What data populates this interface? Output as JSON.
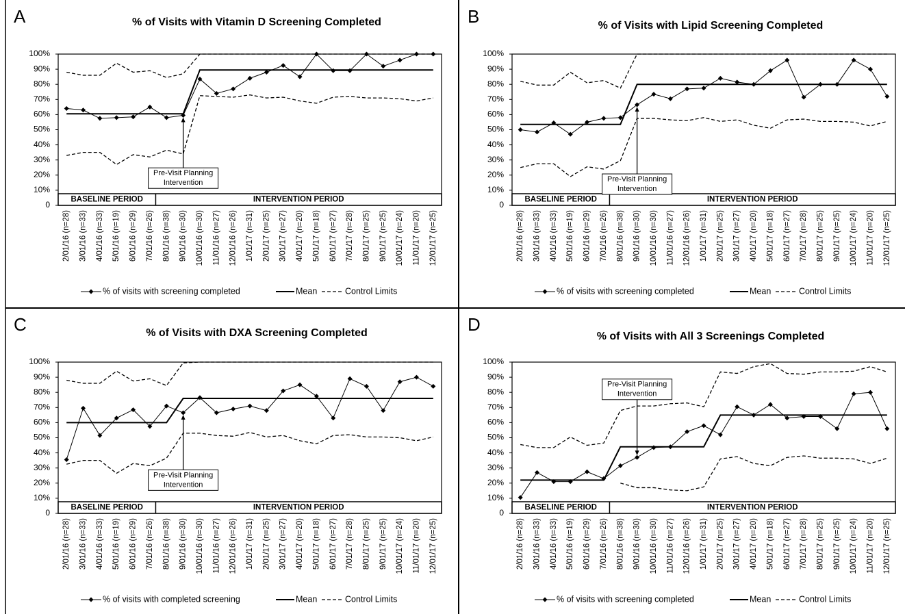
{
  "chart_data": [
    {
      "type": "line",
      "letter": "A",
      "title": "% of Visits with Vitamin D Screening Completed",
      "annotation": [
        "Pre-Visit Planning",
        "Intervention"
      ],
      "periods": [
        "BASELINE PERIOD",
        "INTERVENTION PERIOD"
      ],
      "categories": [
        "2/01/16 (n=28)",
        "3/01/16 (n=33)",
        "4/01/16 (n=33)",
        "5/01/16 (n=19)",
        "6/01/16 (n=29)",
        "7/01/16 (n=26)",
        "8/01/16 (n=38)",
        "9/01/16 (n=30)",
        "10/01/16 (n=30)",
        "11/01/16 (n=27)",
        "12/01/16 (n=26)",
        "1/01/17 (n=31)",
        "2/01/17 (n=25)",
        "3/01/17 (n=27)",
        "4/01/17 (n=20)",
        "5/01/17 (n=18)",
        "6/01/17 (n=27)",
        "7/01/17 (n=28)",
        "8/01/17 (n=25)",
        "9/01/17 (n=25)",
        "10/01/17 (n=24)",
        "11/01/17 (n=20)",
        "12/01/17 (n=25)"
      ],
      "ylim": [
        0,
        100
      ],
      "yticks": [
        0,
        {
          "value": 10,
          "label": "10%"
        },
        {
          "value": 20,
          "label": "20%"
        },
        {
          "value": 30,
          "label": "30%"
        },
        {
          "value": 40,
          "label": "40%"
        },
        {
          "value": 50,
          "label": "50%"
        },
        {
          "value": 60,
          "label": "60%"
        },
        {
          "value": 70,
          "label": "70%"
        },
        {
          "value": 80,
          "label": "80%"
        },
        {
          "value": 90,
          "label": "90%"
        },
        {
          "value": 100,
          "label": "100%"
        }
      ],
      "series": [
        {
          "name": "% of visits with screening completed",
          "color": "#000000",
          "values": [
            64,
            63,
            57.5,
            58,
            58.5,
            65,
            58,
            59.5,
            83.5,
            74,
            77,
            84,
            88,
            92.5,
            85,
            100,
            89,
            89,
            100,
            92,
            96,
            100,
            100
          ]
        },
        {
          "name": "Mean",
          "color": "#000000",
          "values": [
            60.5,
            60.5,
            60.5,
            60.5,
            60.5,
            60.5,
            60.5,
            60.5,
            89.5,
            89.5,
            89.5,
            89.5,
            89.5,
            89.5,
            89.5,
            89.5,
            89.5,
            89.5,
            89.5,
            89.5,
            89.5,
            89.5,
            89.5
          ]
        },
        {
          "name": "Control Limits",
          "color": "#000000",
          "values": [
            88,
            86,
            86,
            94,
            88,
            89,
            84.5,
            87,
            100,
            100,
            100,
            100,
            100,
            100,
            100,
            100,
            100,
            100,
            100,
            100,
            100,
            100,
            100
          ],
          "lower": [
            33,
            35,
            35,
            27,
            33.5,
            32,
            36.5,
            34,
            72.5,
            72,
            71.5,
            73,
            71,
            71.5,
            69,
            67.5,
            71.5,
            72,
            71,
            71,
            70.5,
            69,
            71
          ]
        }
      ]
    },
    {
      "type": "line",
      "letter": "B",
      "title": "% of Visits with Lipid Screening Completed",
      "annotation": [
        "Pre-Visit Planning",
        "Intervention"
      ],
      "periods": [
        "BASELINE PERIOD",
        "INTERVENTION PERIOD"
      ],
      "categories": [
        "2/01/16 (n=28)",
        "3/01/16 (n=33)",
        "4/01/16 (n=33)",
        "5/01/16 (n=19)",
        "6/01/16 (n=29)",
        "7/01/16 (n=26)",
        "8/01/16 (n=38)",
        "9/01/16 (n=30)",
        "10/01/16 (n=30)",
        "11/01/16 (n=27)",
        "12/01/16 (n=26)",
        "1/01/17 (n=31)",
        "2/01/17 (n=25)",
        "3/01/17 (n=27)",
        "4/01/17 (n=20)",
        "5/01/17 (n=18)",
        "6/01/17 (n=27)",
        "7/01/17 (n=28)",
        "8/01/17 (n=25)",
        "9/01/17 (n=25)",
        "10/01/17 (n=24)",
        "11/01/17 (n=20)",
        "12/01/17 (n=25)"
      ],
      "ylim": [
        0,
        100
      ],
      "yticks": [
        0,
        {
          "value": 10,
          "label": "10%"
        },
        {
          "value": 20,
          "label": "20%"
        },
        {
          "value": 30,
          "label": "30%"
        },
        {
          "value": 40,
          "label": "40%"
        },
        {
          "value": 50,
          "label": "50%"
        },
        {
          "value": 60,
          "label": "60%"
        },
        {
          "value": 70,
          "label": "70%"
        },
        {
          "value": 80,
          "label": "80%"
        },
        {
          "value": 90,
          "label": "90%"
        },
        {
          "value": 100,
          "label": "100%"
        }
      ],
      "series": [
        {
          "name": "% of visits with screening completed",
          "color": "#000000",
          "values": [
            50,
            48.5,
            54.5,
            47,
            55,
            57.5,
            58,
            66.5,
            73.5,
            70.5,
            77,
            77.5,
            84,
            81.5,
            80,
            89,
            96,
            71.5,
            80,
            80,
            96,
            90,
            72
          ]
        },
        {
          "name": "Mean",
          "color": "#000000",
          "values": [
            53.5,
            53.5,
            53.5,
            53.5,
            53.5,
            53.5,
            53.5,
            80,
            80,
            80,
            80,
            80,
            80,
            80,
            80,
            80,
            80,
            80,
            80,
            80,
            80,
            80,
            80
          ]
        },
        {
          "name": "Control Limits",
          "color": "#000000",
          "values": [
            82,
            79.5,
            79.5,
            88,
            81,
            82.5,
            77.5,
            100,
            100,
            100,
            100,
            100,
            100,
            100,
            100,
            100,
            100,
            100,
            100,
            100,
            100,
            100,
            100
          ],
          "lower": [
            25,
            27.5,
            27.5,
            19,
            25.5,
            24,
            29.5,
            57.5,
            57.5,
            56.5,
            56,
            58,
            55.5,
            56.5,
            53,
            51,
            56.5,
            57,
            55.5,
            55.5,
            55,
            52.5,
            55.5
          ]
        }
      ]
    },
    {
      "type": "line",
      "letter": "C",
      "title": "% of Visits with DXA Screening Completed",
      "annotation": [
        "Pre-Visit Planning",
        "Intervention"
      ],
      "periods": [
        "BASELINE PERIOD",
        "INTERVENTION PERIOD"
      ],
      "categories": [
        "2/01/16 (n=28)",
        "3/01/16 (n=33)",
        "4/01/16 (n=33)",
        "5/01/16 (n=19)",
        "6/01/16 (n=29)",
        "7/01/16 (n=26)",
        "8/01/16 (n=38)",
        "9/01/16 (n=30)",
        "10/01/16 (n=30)",
        "11/01/16 (n=27)",
        "12/01/16 (n=26)",
        "1/01/17 (n=31)",
        "2/01/17 (n=25)",
        "3/01/17 (n=27)",
        "4/01/17 (n=20)",
        "5/01/17 (n=18)",
        "6/01/17 (n=27)",
        "7/01/17 (n=28)",
        "8/01/17 (n=25)",
        "9/01/17 (n=25)",
        "10/01/17 (n=24)",
        "11/01/17 (n=20)",
        "12/01/17 (n=25)"
      ],
      "ylim": [
        0,
        100
      ],
      "yticks": [
        0,
        {
          "value": 10,
          "label": "10%"
        },
        {
          "value": 20,
          "label": "20%"
        },
        {
          "value": 30,
          "label": "30%"
        },
        {
          "value": 40,
          "label": "40%"
        },
        {
          "value": 50,
          "label": "50%"
        },
        {
          "value": 60,
          "label": "60%"
        },
        {
          "value": 70,
          "label": "70%"
        },
        {
          "value": 80,
          "label": "80%"
        },
        {
          "value": 90,
          "label": "90%"
        },
        {
          "value": 100,
          "label": "100%"
        }
      ],
      "series": [
        {
          "name": "% of visits with completed screening",
          "color": "#000000",
          "values": [
            35.5,
            69.5,
            51.5,
            63,
            68.5,
            57.5,
            71,
            66.5,
            76.5,
            66.5,
            69,
            71,
            68,
            81,
            85,
            77.5,
            63,
            89,
            84,
            68,
            87,
            90,
            84
          ]
        },
        {
          "name": "Mean",
          "color": "#000000",
          "values": [
            60,
            60,
            60,
            60,
            60,
            60,
            60,
            76,
            76,
            76,
            76,
            76,
            76,
            76,
            76,
            76,
            76,
            76,
            76,
            76,
            76,
            76,
            76
          ]
        },
        {
          "name": "Control Limits",
          "color": "#000000",
          "values": [
            88,
            86,
            86,
            94,
            87.5,
            89,
            84.5,
            99.5,
            100,
            100,
            100,
            100,
            100,
            100,
            100,
            100,
            100,
            100,
            100,
            100,
            100,
            100,
            100
          ],
          "lower": [
            32.5,
            35,
            35,
            26.5,
            33,
            31.5,
            36.5,
            53,
            53,
            51.5,
            51,
            53.5,
            50.5,
            51.5,
            48,
            46,
            51.5,
            52,
            50.5,
            50.5,
            50,
            48,
            50.5
          ]
        }
      ]
    },
    {
      "type": "line",
      "letter": "D",
      "title": "% of Visits with All 3 Screenings Completed",
      "annotation": [
        "Pre-Visit Planning",
        "Intervention"
      ],
      "periods": [
        "BASELINE PERIOD",
        "INTERVENTION PERIOD"
      ],
      "categories": [
        "2/01/16 (n=28)",
        "3/01/16 (n=33)",
        "4/01/16 (n=33)",
        "5/01/16 (n=19)",
        "6/01/16 (n=29)",
        "7/01/16 (n=26)",
        "8/01/16 (n=38)",
        "9/01/16 (n=30)",
        "10/01/16 (n=30)",
        "11/01/16 (n=27)",
        "12/01/16 (n=26)",
        "1/01/17 (n=31)",
        "2/01/17 (n=25)",
        "3/01/17 (n=27)",
        "4/01/17 (n=20)",
        "5/01/17 (n=18)",
        "6/01/17 (n=27)",
        "7/01/17 (n=28)",
        "8/01/17 (n=25)",
        "9/01/17 (n=25)",
        "10/01/17 (n=24)",
        "11/01/17 (n=20)",
        "12/01/17 (n=25)"
      ],
      "ylim": [
        0,
        100
      ],
      "yticks": [
        0,
        {
          "value": 10,
          "label": "10%"
        },
        {
          "value": 20,
          "label": "20%"
        },
        {
          "value": 30,
          "label": "30%"
        },
        {
          "value": 40,
          "label": "40%"
        },
        {
          "value": 50,
          "label": "50%"
        },
        {
          "value": 60,
          "label": "60%"
        },
        {
          "value": 70,
          "label": "70%"
        },
        {
          "value": 80,
          "label": "80%"
        },
        {
          "value": 90,
          "label": "90%"
        },
        {
          "value": 100,
          "label": "100%"
        }
      ],
      "series": [
        {
          "name": "% of visits with screening completed",
          "color": "#000000",
          "values": [
            10.5,
            27,
            21,
            21,
            27.5,
            23,
            31.5,
            37,
            43.5,
            44,
            54,
            58,
            52,
            70.5,
            65,
            72,
            63,
            64,
            64,
            56,
            79,
            80,
            56
          ]
        },
        {
          "name": "Mean",
          "color": "#000000",
          "values": [
            22,
            22,
            22,
            22,
            22,
            22,
            44,
            44,
            44,
            44,
            44,
            44,
            65,
            65,
            65,
            65,
            65,
            65,
            65,
            65,
            65,
            65,
            65
          ]
        },
        {
          "name": "Control Limits",
          "color": "#000000",
          "values": [
            45.5,
            43.5,
            43.5,
            50.5,
            45,
            46.5,
            68,
            71,
            71,
            72.5,
            73,
            70.5,
            93.5,
            92.5,
            97,
            99,
            92.5,
            92,
            93.5,
            93.5,
            94,
            97,
            93.5
          ],
          "lower": [
            null,
            null,
            null,
            null,
            null,
            null,
            20,
            17,
            17,
            15.5,
            15,
            17.5,
            36,
            37.5,
            33,
            31.5,
            37,
            38,
            36.5,
            36.5,
            36,
            33,
            36.5
          ]
        }
      ]
    }
  ]
}
